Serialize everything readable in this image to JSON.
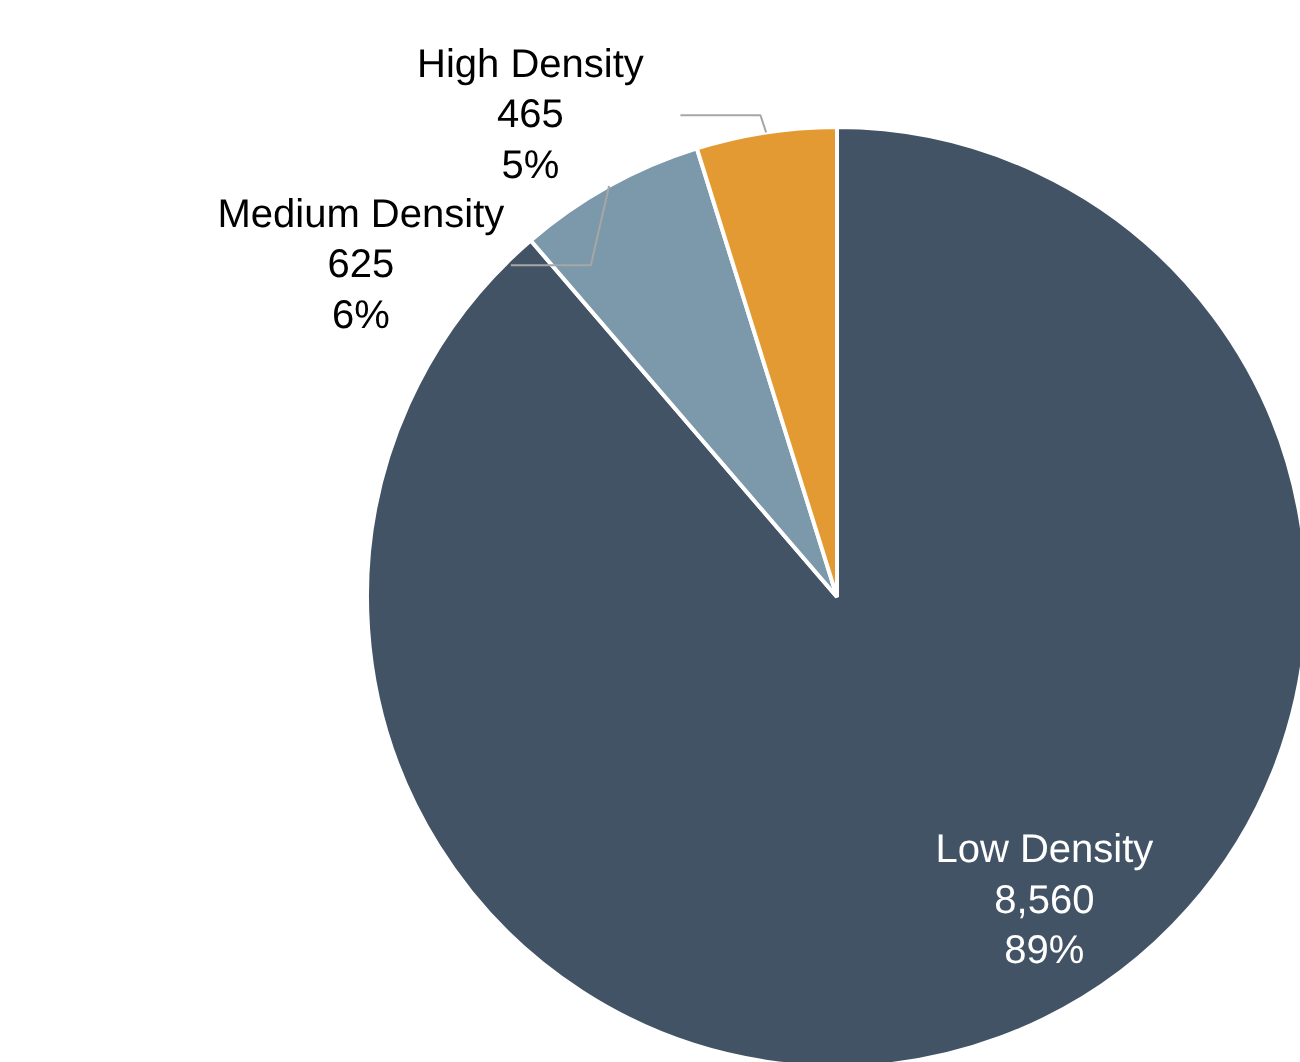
{
  "chart_data": {
    "type": "pie",
    "categories": [
      "Low Density",
      "Medium Density",
      "High Density"
    ],
    "values": [
      8560,
      625,
      465
    ],
    "colors": [
      "#435366",
      "#7c98ab",
      "#e39a33"
    ],
    "value_labels": [
      "8,560\n89%",
      "625\n6%",
      "465\n5%"
    ],
    "legend": false
  }
}
